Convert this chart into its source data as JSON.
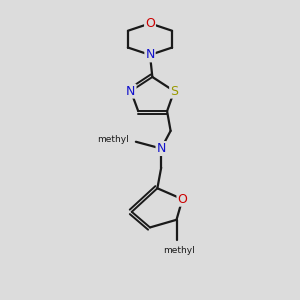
{
  "background_color": "#dcdcdc",
  "bond_color": "#1a1a1a",
  "lw": 1.6,
  "dbo": 0.012,
  "figsize": [
    3.0,
    3.0
  ],
  "dpi": 100,
  "colors": {
    "O": "#cc0000",
    "N": "#1111cc",
    "S": "#999900",
    "C": "#1a1a1a"
  }
}
